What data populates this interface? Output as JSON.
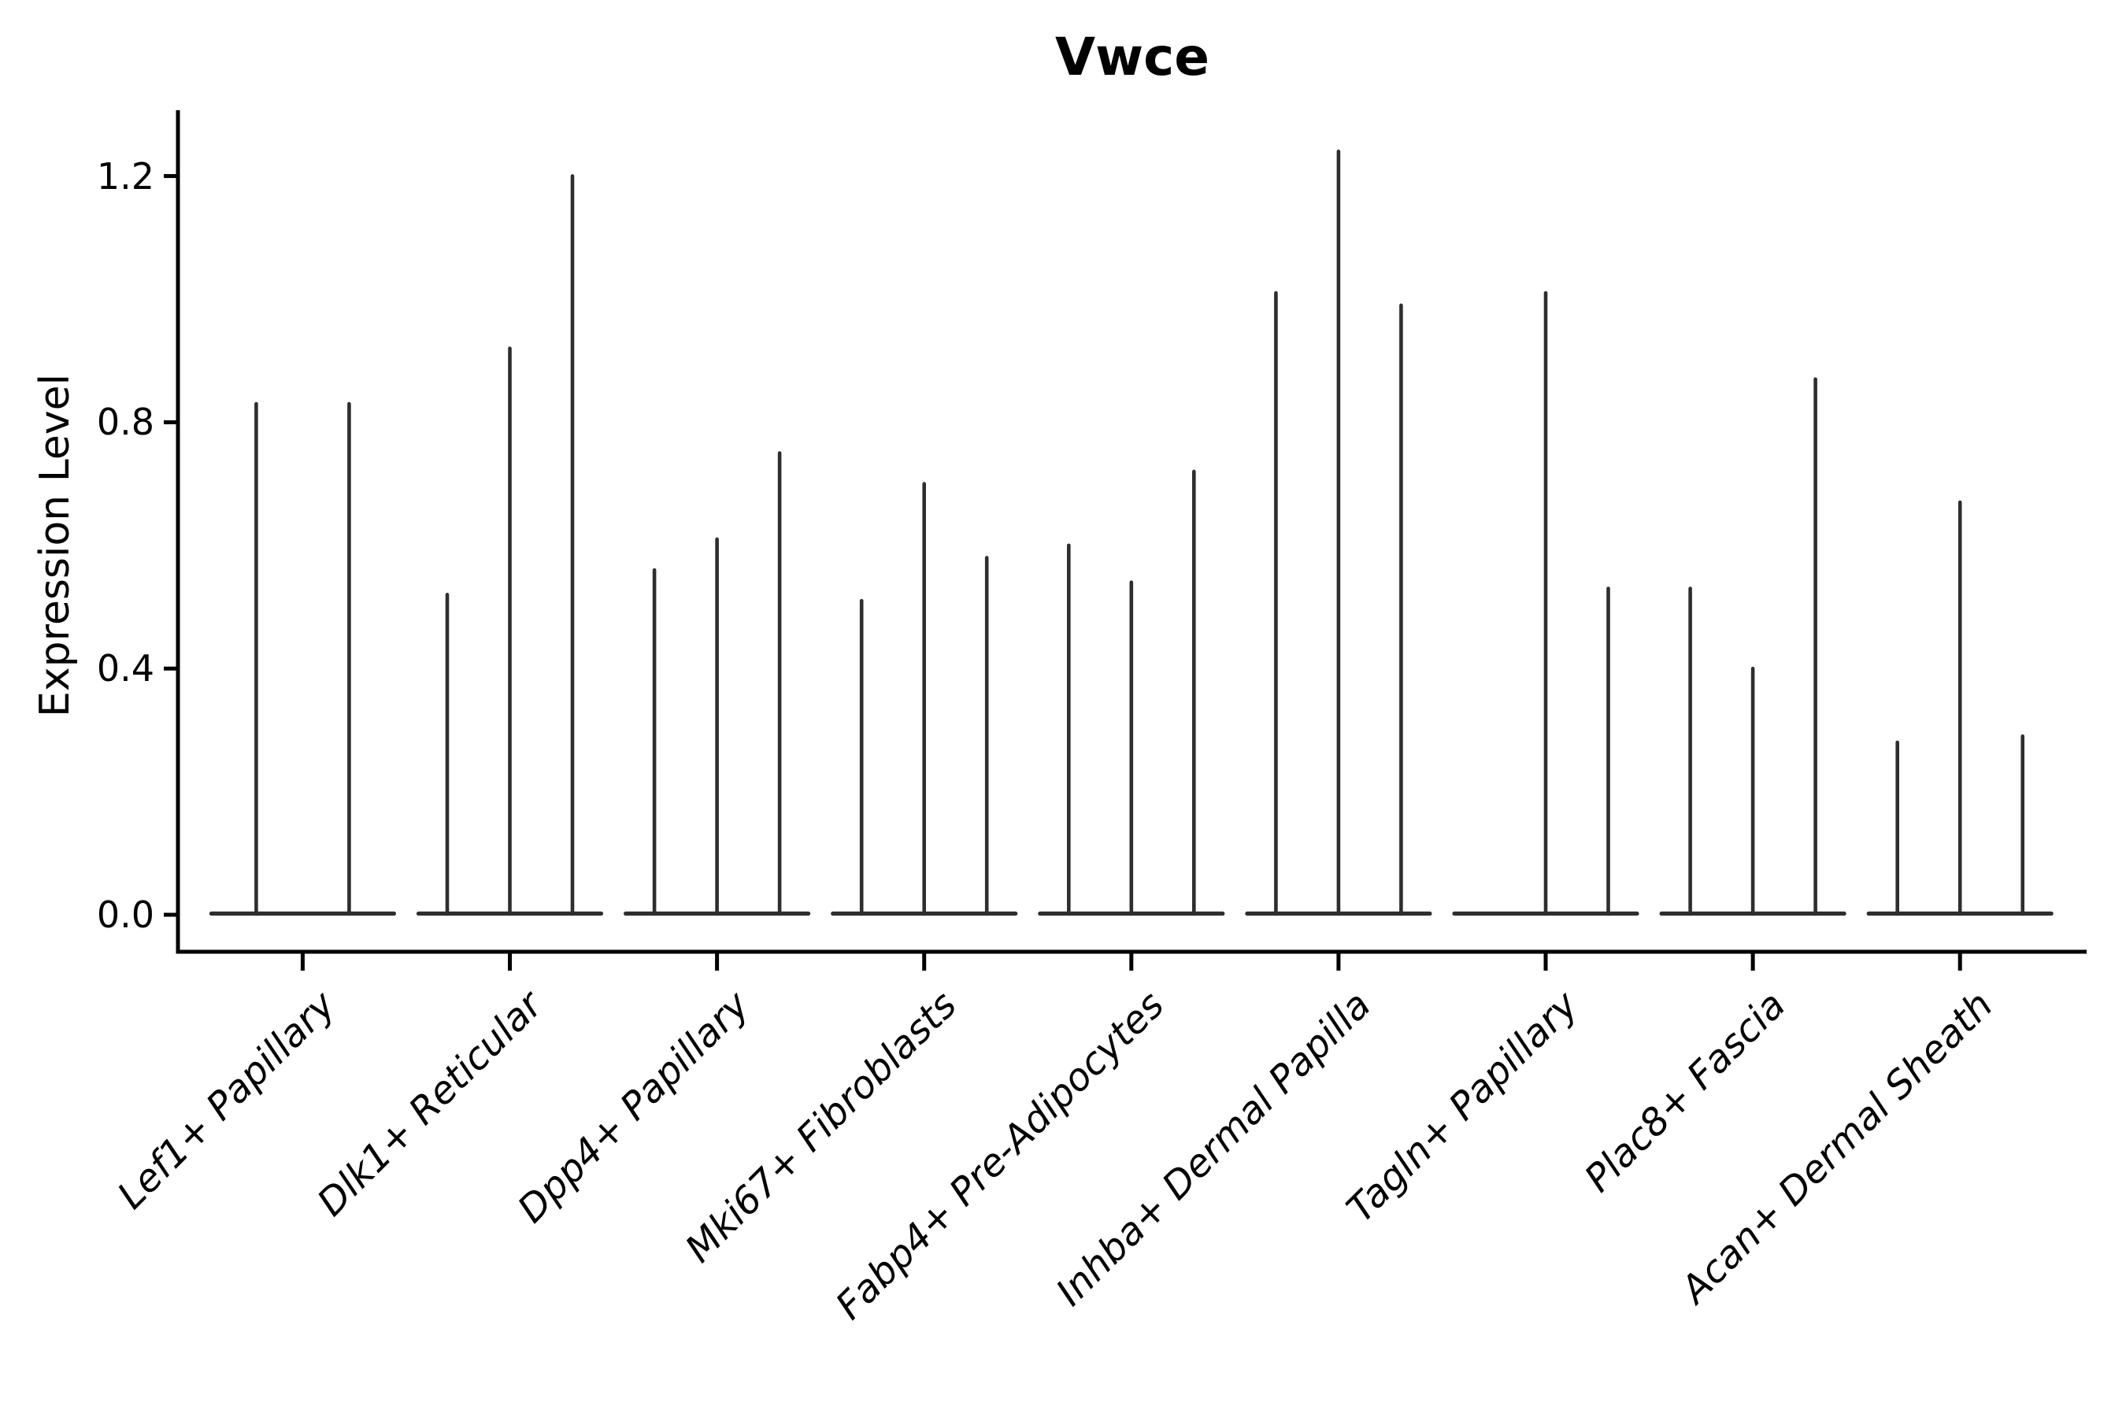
{
  "title": "Vwce",
  "axes": {
    "y_label": "Expression Level",
    "y_tick_labels": [
      "0.0",
      "0.4",
      "0.8",
      "1.2"
    ]
  },
  "chart_data": {
    "type": "violin",
    "title": "Vwce",
    "xlabel": "",
    "ylabel": "Expression Level",
    "ylim": [
      0,
      1.3
    ],
    "y_ticks": [
      0.0,
      0.4,
      0.8,
      1.2
    ],
    "grid": false,
    "legend": "none",
    "description": "Needle-thin violin plots of expression level per cell type; each category holds 2-3 violins with a flat base at 0 and a thin spike reaching the max expression value. A value of 0 means a flat violin with no spike.",
    "categories": [
      "Lef1+ Papillary",
      "Dlk1+ Reticular",
      "Dpp4+ Papillary",
      "Mki67+ Fibroblasts",
      "Fabp4+ Pre-Adipocytes",
      "Inhba+ Dermal Papilla",
      "Tagln+ Papillary",
      "Plac8+ Fascia",
      "Acan+ Dermal Sheath"
    ],
    "groups": [
      {
        "category": "Lef1+ Papillary",
        "violin_max": [
          0.83,
          0.83
        ]
      },
      {
        "category": "Dlk1+ Reticular",
        "violin_max": [
          0.52,
          0.92,
          1.2
        ]
      },
      {
        "category": "Dpp4+ Papillary",
        "violin_max": [
          0.56,
          0.61,
          0.75
        ]
      },
      {
        "category": "Mki67+ Fibroblasts",
        "violin_max": [
          0.51,
          0.7,
          0.58
        ]
      },
      {
        "category": "Fabp4+ Pre-Adipocytes",
        "violin_max": [
          0.6,
          0.54,
          0.72
        ]
      },
      {
        "category": "Inhba+ Dermal Papilla",
        "violin_max": [
          1.01,
          1.24,
          0.99
        ]
      },
      {
        "category": "Tagln+ Papillary",
        "violin_max": [
          0.0,
          1.01,
          0.53
        ]
      },
      {
        "category": "Plac8+ Fascia",
        "violin_max": [
          0.53,
          0.4,
          0.87
        ]
      },
      {
        "category": "Acan+ Dermal Sheath",
        "violin_max": [
          0.28,
          0.67,
          0.29
        ]
      }
    ],
    "style": {
      "violin_color": "#2e2e2e",
      "axis_color": "#000000",
      "background": "#ffffff"
    }
  }
}
